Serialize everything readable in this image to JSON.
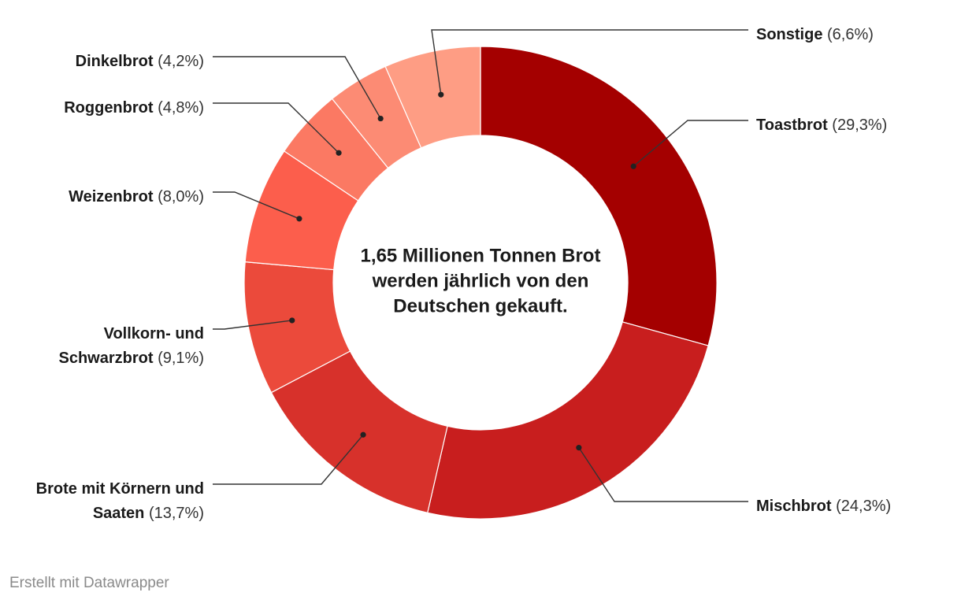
{
  "center_text": [
    "1,65 Millionen Tonnen Brot",
    "werden jährlich von den",
    "Deutschen gekauft."
  ],
  "credit": "Erstellt mit Datawrapper",
  "chart_data": {
    "type": "pie",
    "variant": "donut",
    "title": "",
    "slices": [
      {
        "name": "Toastbrot",
        "value": 29.3,
        "value_label": "(29,3%)",
        "color": "#a40000",
        "label_side": "right",
        "name_lines": [
          "Toastbrot"
        ]
      },
      {
        "name": "Mischbrot",
        "value": 24.3,
        "value_label": "(24,3%)",
        "color": "#c81e1e",
        "label_side": "right",
        "name_lines": [
          "Mischbrot"
        ]
      },
      {
        "name": "Brote mit Körnern und Saaten",
        "value": 13.7,
        "value_label": "(13,7%)",
        "color": "#d7312b",
        "label_side": "left",
        "name_lines": [
          "Brote mit Körnern und",
          "Saaten"
        ]
      },
      {
        "name": "Vollkorn- und Schwarzbrot",
        "value": 9.1,
        "value_label": "(9,1%)",
        "color": "#eb4a3b",
        "label_side": "left",
        "name_lines": [
          "Vollkorn- und",
          "Schwarzbrot"
        ]
      },
      {
        "name": "Weizenbrot",
        "value": 8.0,
        "value_label": "(8,0%)",
        "color": "#fc5e4c",
        "label_side": "left",
        "name_lines": [
          "Weizenbrot"
        ]
      },
      {
        "name": "Roggenbrot",
        "value": 4.8,
        "value_label": "(4,8%)",
        "color": "#fb7963",
        "label_side": "left",
        "name_lines": [
          "Roggenbrot"
        ]
      },
      {
        "name": "Dinkelbrot",
        "value": 4.2,
        "value_label": "(4,2%)",
        "color": "#fc8b74",
        "label_side": "left",
        "name_lines": [
          "Dinkelbrot"
        ]
      },
      {
        "name": "Sonstige",
        "value": 6.6,
        "value_label": "(6,6%)",
        "color": "#fe9d84",
        "label_side": "right",
        "name_lines": [
          "Sonstige"
        ]
      }
    ]
  }
}
